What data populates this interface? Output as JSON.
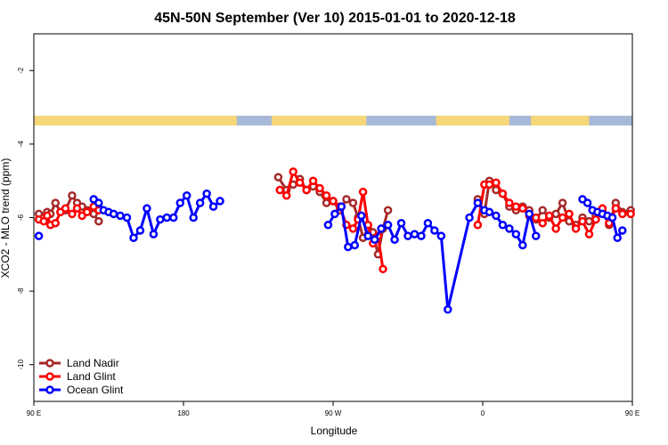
{
  "chart_data": {
    "type": "line",
    "title": "45N-50N September (Ver 10)   2015-01-01 to 2020-12-18",
    "xlabel": "Longitude",
    "ylabel": "XCO2 - MLO trend (ppm)",
    "xlim": [
      90,
      450
    ],
    "ylim": [
      -11,
      -1
    ],
    "x_ticks": [
      {
        "value": 90,
        "label": "90 E"
      },
      {
        "value": 180,
        "label": "180"
      },
      {
        "value": 270,
        "label": "90 W"
      },
      {
        "value": 360,
        "label": "0"
      },
      {
        "value": 450,
        "label": "90 E"
      },
      {
        "value": 540,
        "label": "180"
      }
    ],
    "y_ticks": [
      {
        "value": -2,
        "label": "-2"
      },
      {
        "value": -4,
        "label": "-4"
      },
      {
        "value": -6,
        "label": "-6"
      },
      {
        "value": -8,
        "label": "-8"
      },
      {
        "value": -10,
        "label": "-10"
      }
    ],
    "grid": false,
    "legend_position": "bottom-left",
    "land_ocean_strip": {
      "land_color": "#f5d77a",
      "ocean_color": "#a7b9d6",
      "land_ranges": [
        [
          90,
          212
        ],
        [
          233,
          290
        ],
        [
          332,
          376
        ],
        [
          389,
          424
        ],
        [
          450,
          572
        ]
      ]
    },
    "series": [
      {
        "name": "Land Nadir",
        "color": "#a52a2a",
        "points": [
          [
            93,
            -5.9
          ],
          [
            96,
            -6.0
          ],
          [
            98,
            -5.85
          ],
          [
            100,
            -5.9
          ],
          [
            103,
            -5.6
          ],
          [
            106,
            -5.85
          ],
          [
            109,
            -5.8
          ],
          [
            113,
            -5.4
          ],
          [
            116,
            -5.6
          ],
          [
            119,
            -5.7
          ],
          [
            122,
            -5.8
          ],
          [
            126,
            -5.9
          ],
          [
            129,
            -6.1
          ],
          [
            237,
            -4.9
          ],
          [
            242,
            -5.25
          ],
          [
            246,
            -5.1
          ],
          [
            250,
            -4.95
          ],
          [
            254,
            -5.25
          ],
          [
            258,
            -5.15
          ],
          [
            262,
            -5.3
          ],
          [
            266,
            -5.6
          ],
          [
            270,
            -5.55
          ],
          [
            274,
            -5.8
          ],
          [
            278,
            -5.5
          ],
          [
            282,
            -5.6
          ],
          [
            285,
            -6.0
          ],
          [
            288,
            -6.55
          ],
          [
            291,
            -6.3
          ],
          [
            294,
            -6.4
          ],
          [
            297,
            -7.0
          ],
          [
            300,
            -6.3
          ],
          [
            303,
            -5.8
          ],
          [
            357,
            -5.5
          ],
          [
            361,
            -5.9
          ],
          [
            364,
            -5.0
          ],
          [
            368,
            -5.25
          ],
          [
            372,
            -5.35
          ],
          [
            376,
            -5.7
          ],
          [
            380,
            -5.8
          ],
          [
            384,
            -5.7
          ],
          [
            388,
            -5.8
          ],
          [
            392,
            -6.05
          ],
          [
            396,
            -5.8
          ],
          [
            400,
            -6.0
          ],
          [
            404,
            -5.9
          ],
          [
            408,
            -5.6
          ],
          [
            412,
            -6.1
          ],
          [
            416,
            -6.2
          ],
          [
            420,
            -6.0
          ],
          [
            424,
            -6.1
          ],
          [
            428,
            -5.95
          ],
          [
            432,
            -5.85
          ],
          [
            436,
            -6.2
          ],
          [
            440,
            -5.6
          ],
          [
            444,
            -5.85
          ],
          [
            449,
            -5.8
          ],
          [
            453,
            -5.4
          ],
          [
            456,
            -5.6
          ],
          [
            459,
            -5.7
          ],
          [
            462,
            -5.8
          ],
          [
            466,
            -5.9
          ],
          [
            469,
            -6.1
          ]
        ]
      },
      {
        "name": "Land Glint",
        "color": "#ff0000",
        "points": [
          [
            93,
            -6.05
          ],
          [
            96,
            -6.1
          ],
          [
            98,
            -5.95
          ],
          [
            100,
            -6.2
          ],
          [
            103,
            -6.15
          ],
          [
            106,
            -5.85
          ],
          [
            109,
            -5.75
          ],
          [
            113,
            -5.9
          ],
          [
            116,
            -5.75
          ],
          [
            119,
            -5.95
          ],
          [
            122,
            -5.85
          ],
          [
            126,
            -5.7
          ],
          [
            129,
            -5.8
          ],
          [
            238,
            -5.25
          ],
          [
            242,
            -5.4
          ],
          [
            246,
            -4.75
          ],
          [
            250,
            -5.05
          ],
          [
            254,
            -5.25
          ],
          [
            258,
            -5.0
          ],
          [
            262,
            -5.2
          ],
          [
            266,
            -5.4
          ],
          [
            270,
            -5.55
          ],
          [
            274,
            -5.7
          ],
          [
            278,
            -6.2
          ],
          [
            282,
            -6.3
          ],
          [
            285,
            -6.05
          ],
          [
            288,
            -5.3
          ],
          [
            291,
            -6.2
          ],
          [
            294,
            -6.7
          ],
          [
            297,
            -6.5
          ],
          [
            300,
            -7.4
          ],
          [
            357,
            -6.2
          ],
          [
            361,
            -5.1
          ],
          [
            364,
            -5.1
          ],
          [
            368,
            -5.05
          ],
          [
            372,
            -5.35
          ],
          [
            376,
            -5.6
          ],
          [
            380,
            -5.7
          ],
          [
            384,
            -5.75
          ],
          [
            388,
            -5.95
          ],
          [
            392,
            -6.0
          ],
          [
            396,
            -6.15
          ],
          [
            400,
            -5.95
          ],
          [
            404,
            -6.3
          ],
          [
            408,
            -6.0
          ],
          [
            412,
            -5.9
          ],
          [
            416,
            -6.3
          ],
          [
            420,
            -6.1
          ],
          [
            424,
            -6.45
          ],
          [
            428,
            -6.05
          ],
          [
            432,
            -5.75
          ],
          [
            436,
            -6.15
          ],
          [
            440,
            -5.75
          ],
          [
            444,
            -5.9
          ],
          [
            449,
            -5.9
          ],
          [
            453,
            -5.85
          ],
          [
            456,
            -5.7
          ],
          [
            459,
            -5.8
          ],
          [
            462,
            -5.6
          ],
          [
            466,
            -5.7
          ]
        ]
      },
      {
        "name": "Ocean Glint",
        "color": "#0000ff",
        "points": [
          [
            93,
            -6.5
          ],
          [
            126,
            -5.5
          ],
          [
            129,
            -5.6
          ],
          [
            132,
            -5.8
          ],
          [
            135,
            -5.85
          ],
          [
            138,
            -5.9
          ],
          [
            142,
            -5.95
          ],
          [
            146,
            -6.0
          ],
          [
            150,
            -6.55
          ],
          [
            154,
            -6.35
          ],
          [
            158,
            -5.75
          ],
          [
            162,
            -6.45
          ],
          [
            166,
            -6.05
          ],
          [
            170,
            -6.0
          ],
          [
            174,
            -6.0
          ],
          [
            178,
            -5.6
          ],
          [
            182,
            -5.4
          ],
          [
            186,
            -6.0
          ],
          [
            190,
            -5.6
          ],
          [
            194,
            -5.35
          ],
          [
            198,
            -5.7
          ],
          [
            202,
            -5.55
          ],
          [
            267,
            -6.2
          ],
          [
            271,
            -5.9
          ],
          [
            275,
            -5.7
          ],
          [
            279,
            -6.8
          ],
          [
            283,
            -6.75
          ],
          [
            287,
            -5.95
          ],
          [
            291,
            -6.5
          ],
          [
            295,
            -6.6
          ],
          [
            299,
            -6.3
          ],
          [
            303,
            -6.2
          ],
          [
            307,
            -6.6
          ],
          [
            311,
            -6.15
          ],
          [
            315,
            -6.5
          ],
          [
            319,
            -6.45
          ],
          [
            323,
            -6.5
          ],
          [
            327,
            -6.15
          ],
          [
            331,
            -6.35
          ],
          [
            335,
            -6.5
          ],
          [
            339,
            -8.5
          ],
          [
            352,
            -6.0
          ],
          [
            357,
            -5.6
          ],
          [
            361,
            -5.8
          ],
          [
            364,
            -5.85
          ],
          [
            368,
            -5.95
          ],
          [
            372,
            -6.2
          ],
          [
            376,
            -6.3
          ],
          [
            380,
            -6.45
          ],
          [
            384,
            -6.75
          ],
          [
            388,
            -5.9
          ],
          [
            392,
            -6.5
          ],
          [
            420,
            -5.5
          ],
          [
            423,
            -5.6
          ],
          [
            426,
            -5.8
          ],
          [
            429,
            -5.85
          ],
          [
            432,
            -5.9
          ],
          [
            435,
            -5.95
          ],
          [
            438,
            -6.0
          ],
          [
            441,
            -6.55
          ],
          [
            444,
            -6.35
          ]
        ]
      }
    ]
  }
}
